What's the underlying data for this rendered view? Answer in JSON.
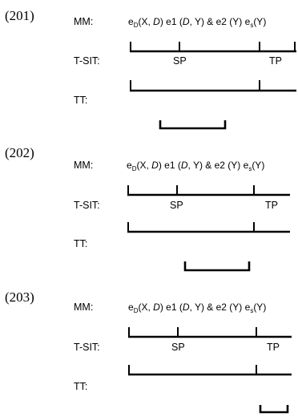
{
  "blocks": [
    {
      "number": "(201)",
      "mm": {
        "label": "MM:",
        "parts": {
          "eD_base": "e",
          "eD_sub": "D",
          "eD_args": "(X, ",
          "eD_D": "D",
          "eD_close": ")",
          "e1": " e1 (",
          "e1_D": "D",
          "e1_rest": ", Y) & e2 (Y)  e",
          "es_sub": "s",
          "es_args": "(Y)"
        }
      },
      "tsit": {
        "label": "T-SIT:",
        "sp": "SP",
        "tp": "TP"
      },
      "tt": {
        "label": "TT:"
      }
    },
    {
      "number": "(202)",
      "mm": {
        "label": "MM:",
        "parts": {
          "eD_base": "e",
          "eD_sub": "D",
          "eD_args": "(X, ",
          "eD_D": "D",
          "eD_close": ")",
          "e1": " e1 (",
          "e1_D": "D",
          "e1_rest": ", Y) & e2 (Y)  e",
          "es_sub": "s",
          "es_args": "(Y)"
        }
      },
      "tsit": {
        "label": "T-SIT:",
        "sp": "SP",
        "tp": "TP"
      },
      "tt": {
        "label": "TT:"
      }
    },
    {
      "number": "(203)",
      "mm": {
        "label": "MM:",
        "parts": {
          "eD_base": "e",
          "eD_sub": "D",
          "eD_args": "(X, ",
          "eD_D": "D",
          "eD_close": ")",
          "e1": " e1 (",
          "e1_D": "D",
          "e1_rest": ", Y) & e2 (Y)  e",
          "es_sub": "s",
          "es_args": "(Y)"
        }
      },
      "tsit": {
        "label": "T-SIT:",
        "sp": "SP",
        "tp": "TP"
      },
      "tt": {
        "label": "TT:"
      }
    }
  ]
}
